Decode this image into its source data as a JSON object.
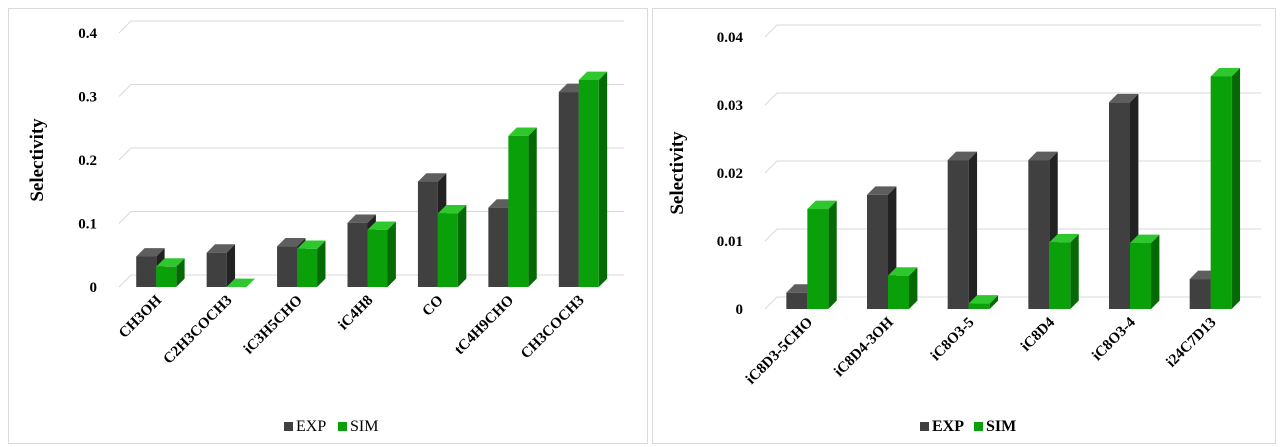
{
  "colors": {
    "exp_front": "#404040",
    "exp_top": "#5e5e5e",
    "exp_side": "#222222",
    "sim_front": "#0aa00a",
    "sim_top": "#2ec82e",
    "sim_side": "#056a05",
    "grid": "#d9d9d9"
  },
  "chart_data": [
    {
      "type": "bar",
      "title": "",
      "xlabel": "",
      "ylabel": "Selectivity",
      "ylim": [
        0,
        0.4
      ],
      "yticks": [
        "0",
        "0.1",
        "0.2",
        "0.3",
        "0.4"
      ],
      "ytick_values": [
        0,
        0.1,
        0.2,
        0.3,
        0.4
      ],
      "grid": true,
      "legend_position": "bottom",
      "categories": [
        "CH3OH",
        "C2H3COCH3",
        "iC3H5CHO",
        "iC4H8",
        "CO",
        "tC4H9CHO",
        "CH3COCH3"
      ],
      "series": [
        {
          "name": "EXP",
          "values": [
            0.048,
            0.054,
            0.064,
            0.101,
            0.166,
            0.125,
            0.307
          ]
        },
        {
          "name": "SIM",
          "values": [
            0.032,
            0.0,
            0.06,
            0.09,
            0.116,
            0.238,
            0.326
          ]
        }
      ]
    },
    {
      "type": "bar",
      "title": "",
      "xlabel": "",
      "ylabel": "Selectivity",
      "ylim": [
        0,
        0.04
      ],
      "yticks": [
        "0",
        "0.01",
        "0.02",
        "0.03",
        "0.04"
      ],
      "ytick_values": [
        0,
        0.01,
        0.02,
        0.03,
        0.04
      ],
      "grid": true,
      "legend_position": "bottom",
      "categories": [
        "iC8D3-5CHO",
        "iC8D4-3OH",
        "iC8O3-5",
        "iC8D4",
        "iC8O3-4",
        "i24C7D13"
      ],
      "series": [
        {
          "name": "EXP",
          "values": [
            0.0024,
            0.0168,
            0.0219,
            0.0219,
            0.0304,
            0.0044
          ]
        },
        {
          "name": "SIM",
          "values": [
            0.0147,
            0.0049,
            0.0008,
            0.0098,
            0.0097,
            0.0342
          ]
        }
      ]
    }
  ]
}
